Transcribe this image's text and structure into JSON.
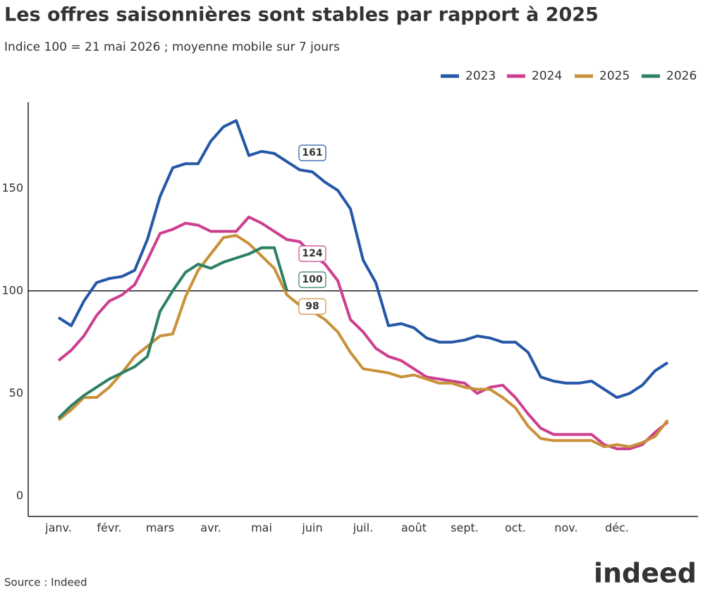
{
  "chart_data": {
    "type": "line",
    "title": "Les offres saisonnières sont stables par rapport à 2025",
    "subtitle": "Indice 100 = 21 mai 2026 ; moyenne mobile sur 7 jours",
    "source": "Source : Indeed",
    "logo": "indeed",
    "categories": [
      "janv.",
      null,
      null,
      null,
      "févr.",
      null,
      null,
      null,
      "mars",
      null,
      null,
      null,
      "avr.",
      null,
      null,
      null,
      "mai",
      null,
      null,
      null,
      "juin",
      null,
      null,
      null,
      "juil.",
      null,
      null,
      null,
      "août",
      null,
      null,
      null,
      "sept.",
      null,
      null,
      null,
      "oct.",
      null,
      null,
      null,
      "nov.",
      null,
      null,
      null,
      "déc.",
      null,
      null,
      null,
      null
    ],
    "ylim": [
      -10,
      192
    ],
    "yticks": [
      0,
      50,
      100,
      150
    ],
    "reference_line": 100,
    "legend": "top-right",
    "series": [
      {
        "name": "2023",
        "color": "#2557a7",
        "label_value": 161,
        "values": [
          87,
          83,
          95,
          104,
          106,
          107,
          110,
          125,
          146,
          160,
          162,
          162,
          173,
          180,
          183,
          166,
          168,
          167,
          163,
          159,
          158,
          153,
          149,
          140,
          115,
          104,
          83,
          84,
          82,
          77,
          75,
          75,
          76,
          78,
          77,
          75,
          75,
          70,
          58,
          56,
          55,
          55,
          56,
          52,
          48,
          50,
          54,
          61,
          65
        ]
      },
      {
        "name": "2024",
        "color": "#cd3e8f",
        "label_value": 124,
        "values": [
          66,
          71,
          78,
          88,
          95,
          98,
          103,
          115,
          128,
          130,
          133,
          132,
          129,
          129,
          129,
          136,
          133,
          129,
          125,
          124,
          118,
          113,
          105,
          86,
          80,
          72,
          68,
          66,
          62,
          58,
          57,
          56,
          55,
          50,
          53,
          54,
          48,
          40,
          33,
          30,
          30,
          30,
          30,
          25,
          23,
          23,
          25,
          31,
          36
        ]
      },
      {
        "name": "2025",
        "color": "#c8913a",
        "label_value": 98,
        "values": [
          37,
          42,
          48,
          48,
          53,
          60,
          68,
          73,
          78,
          79,
          97,
          110,
          118,
          126,
          127,
          123,
          117,
          111,
          98,
          93,
          90,
          86,
          80,
          70,
          62,
          61,
          60,
          58,
          59,
          57,
          55,
          55,
          53,
          52,
          52,
          48,
          43,
          34,
          28,
          27,
          27,
          27,
          27,
          24,
          25,
          24,
          26,
          29,
          37
        ]
      },
      {
        "name": "2026",
        "color": "#2e8065",
        "label_value": 100,
        "values": [
          38,
          44,
          49,
          53,
          57,
          60,
          63,
          68,
          90,
          100,
          109,
          113,
          111,
          114,
          116,
          118,
          121,
          121,
          100,
          null,
          null,
          null,
          null,
          null,
          null,
          null,
          null,
          null,
          null,
          null,
          null,
          null,
          null,
          null,
          null,
          null,
          null,
          null,
          null,
          null,
          null,
          null,
          null,
          null,
          null,
          null,
          null,
          null,
          null
        ]
      }
    ]
  }
}
